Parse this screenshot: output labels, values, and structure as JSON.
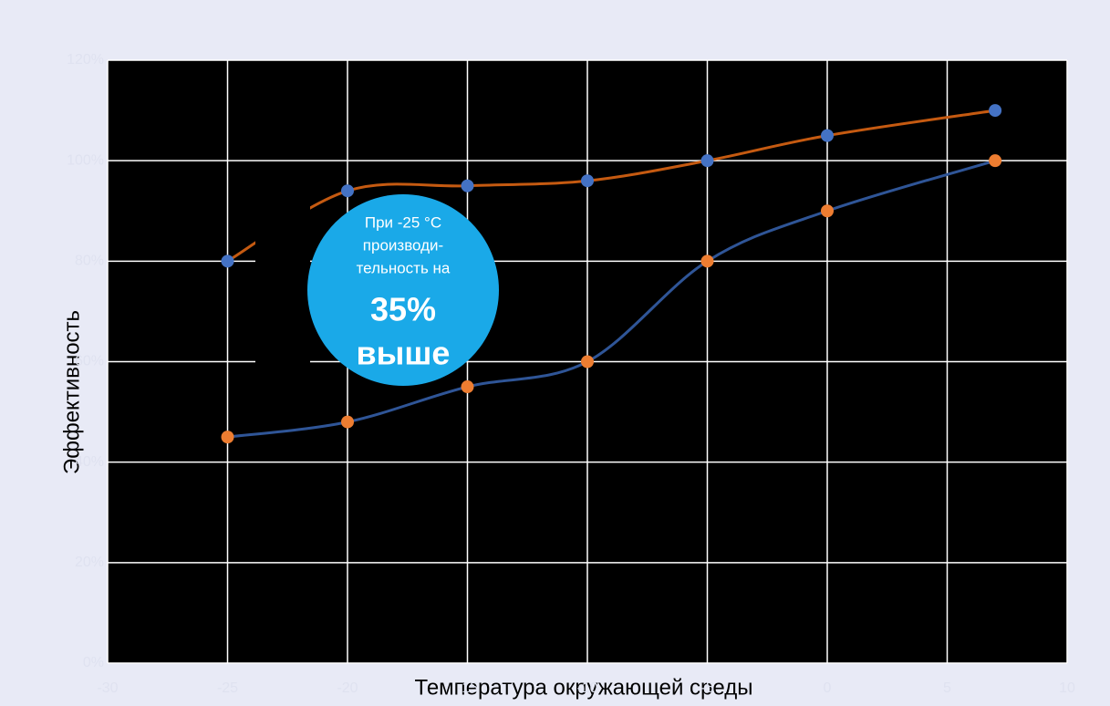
{
  "chart_data": {
    "type": "line",
    "x_label": "Температура окружающей среды",
    "y_label": "Эффективность",
    "x": [
      -25,
      -20,
      -15,
      -10,
      -5,
      0,
      7
    ],
    "series": [
      {
        "color": "#c55a11",
        "marker_color": "#4472c4",
        "values": [
          80,
          94,
          95,
          96,
          100,
          105,
          110
        ]
      },
      {
        "color": "#2f5597",
        "marker_color": "#ed7d31",
        "values": [
          45,
          48,
          55,
          60,
          80,
          90,
          100
        ]
      }
    ],
    "xlim": [
      -30,
      10
    ],
    "xticks": [
      -30,
      -25,
      -20,
      -15,
      -10,
      -5,
      0,
      5,
      10
    ],
    "ylim": [
      0,
      120
    ],
    "yticks": [
      {
        "value": 0,
        "label": "0%"
      },
      {
        "value": 20,
        "label": "20%"
      },
      {
        "value": 40,
        "label": "40%"
      },
      {
        "value": 60,
        "label": "60%"
      },
      {
        "value": 80,
        "label": "80%"
      },
      {
        "value": 100,
        "label": "100%"
      },
      {
        "value": 120,
        "label": "120%"
      }
    ],
    "grid": true,
    "annotations": [
      "При -25 °C",
      "производи-",
      "тельность на",
      "35%",
      "выше"
    ]
  }
}
